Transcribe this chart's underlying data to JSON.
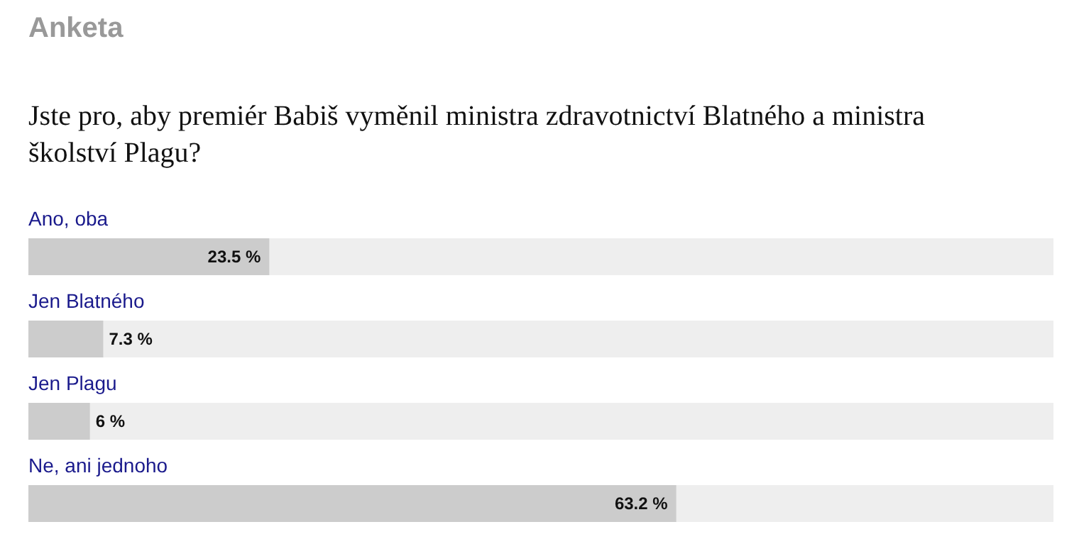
{
  "chart_data": {
    "type": "bar",
    "orientation": "horizontal",
    "title": "Anketa",
    "subtitle": "Jste pro, aby premiér Babiš vyměnil ministra zdravotnictví Blatného a ministra školství Plagu?",
    "categories": [
      "Ano, oba",
      "Jen Blatného",
      "Jen Plagu",
      "Ne, ani jednoho"
    ],
    "values": [
      23.5,
      7.3,
      6,
      63.2
    ],
    "value_labels": [
      "23.5 %",
      "7.3 %",
      "6 %",
      "63.2 %"
    ],
    "color": "#cccccc",
    "xlim": [
      0,
      100
    ],
    "tick_labels": false
  }
}
